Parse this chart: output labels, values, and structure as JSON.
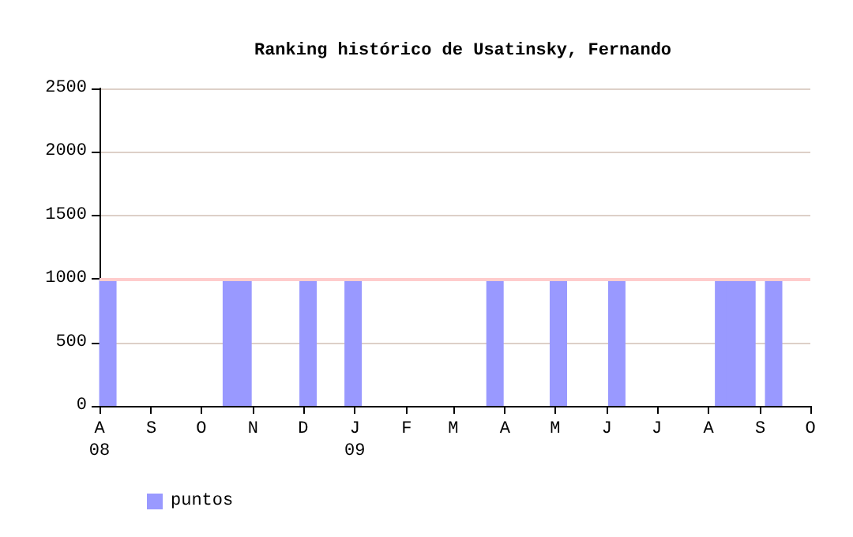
{
  "chart_data": {
    "type": "bar",
    "title": "Ranking histórico de Usatinsky, Fernando",
    "x": [
      "2008-08-06",
      "2008-10-19",
      "2008-10-26",
      "2008-12-04",
      "2008-12-31",
      "2009-03-26",
      "2009-05-03",
      "2009-06-07",
      "2009-08-10",
      "2009-08-17",
      "2009-08-24",
      "2009-09-09"
    ],
    "series": [
      {
        "name": "puntos",
        "color": "#9999ff",
        "values": [
          1000,
          1000,
          1000,
          1000,
          1000,
          1000,
          1000,
          1000,
          1000,
          1000,
          1000,
          1000
        ]
      }
    ],
    "xlim": [
      "2008-08-01",
      "2009-10-01"
    ],
    "xticks": [
      {
        "value": "2008-08-01",
        "label": "A\n08"
      },
      {
        "value": "2008-09-01",
        "label": "S"
      },
      {
        "value": "2008-10-01",
        "label": "O"
      },
      {
        "value": "2008-11-01",
        "label": "N"
      },
      {
        "value": "2008-12-01",
        "label": "D"
      },
      {
        "value": "2009-01-01",
        "label": "J\n09"
      },
      {
        "value": "2009-02-01",
        "label": "F"
      },
      {
        "value": "2009-03-01",
        "label": "M"
      },
      {
        "value": "2009-04-01",
        "label": "A"
      },
      {
        "value": "2009-05-01",
        "label": "M"
      },
      {
        "value": "2009-06-01",
        "label": "J"
      },
      {
        "value": "2009-07-01",
        "label": "J"
      },
      {
        "value": "2009-08-01",
        "label": "A"
      },
      {
        "value": "2009-09-01",
        "label": "S"
      },
      {
        "value": "2009-10-01",
        "label": "O"
      }
    ],
    "ylim": [
      0,
      2500
    ],
    "yticks": [
      0,
      500,
      1000,
      1500,
      2000,
      2500
    ],
    "ref_lines": [
      {
        "axis": "y",
        "value": 1000,
        "color": "#ffcccc"
      }
    ],
    "grid": "y",
    "legend": "bottom left"
  }
}
